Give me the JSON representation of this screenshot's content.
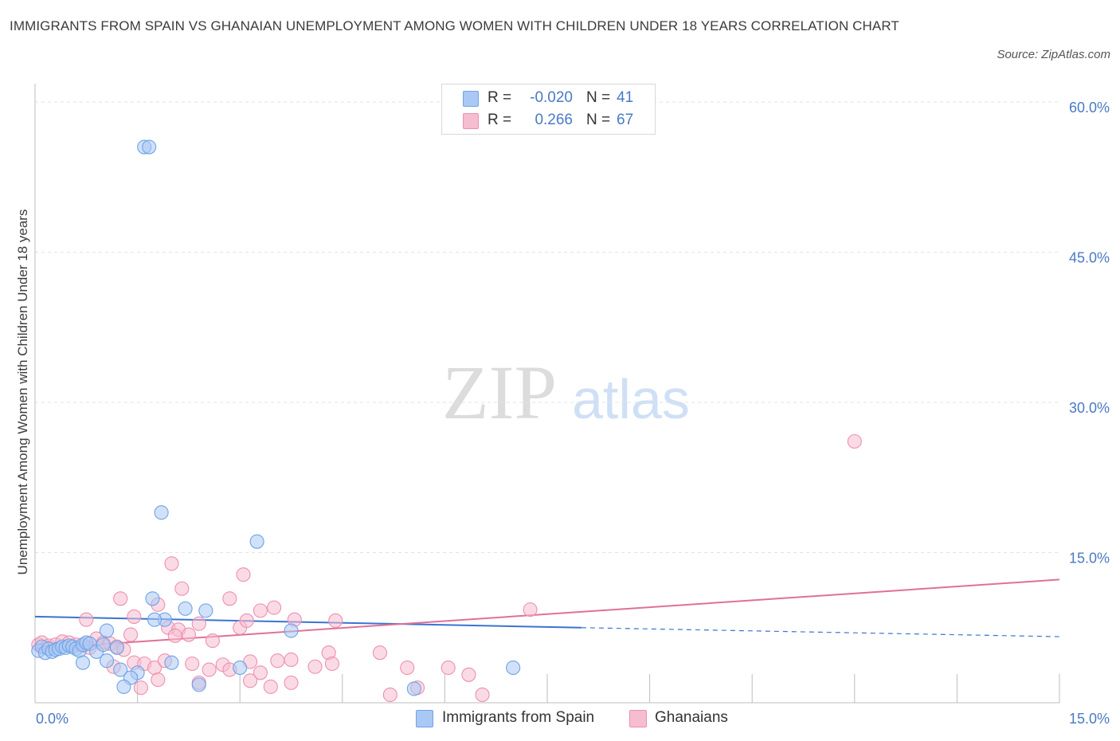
{
  "title": "IMMIGRANTS FROM SPAIN VS GHANAIAN UNEMPLOYMENT AMONG WOMEN WITH CHILDREN UNDER 18 YEARS CORRELATION CHART",
  "source": "Source: ZipAtlas.com",
  "watermark": {
    "zip": "ZIP",
    "atlas": "atlas"
  },
  "legend_top": {
    "rows": [
      {
        "r_label": "R =",
        "r_value": "-0.020",
        "n_label": "N =",
        "n_value": "41",
        "color": "#a9c8f4"
      },
      {
        "r_label": "R =",
        "r_value": "0.266",
        "n_label": "N =",
        "n_value": "67",
        "color": "#f6bdd0"
      }
    ]
  },
  "legend_bottom": [
    {
      "label": "Immigrants from Spain",
      "color": "#a9c8f4"
    },
    {
      "label": "Ghanaians",
      "color": "#f6bdd0"
    }
  ],
  "chart_data": {
    "type": "scatter",
    "title": "IMMIGRANTS FROM SPAIN VS GHANAIAN UNEMPLOYMENT AMONG WOMEN WITH CHILDREN UNDER 18 YEARS CORRELATION CHART",
    "xlabel": "",
    "ylabel": "Unemployment Among Women with Children Under 18 years",
    "xlim": [
      0,
      15
    ],
    "ylim": [
      0,
      60
    ],
    "x_tick_labels": [
      {
        "value": 0,
        "label": "0.0%"
      },
      {
        "value": 15,
        "label": "15.0%"
      }
    ],
    "y_tick_labels": [
      {
        "value": 60,
        "label": "60.0%"
      },
      {
        "value": 45,
        "label": "45.0%"
      },
      {
        "value": 30,
        "label": "30.0%"
      },
      {
        "value": 15,
        "label": "15.0%"
      }
    ],
    "series": [
      {
        "name": "Immigrants from Spain",
        "color": "#6fa3e8",
        "fill": "#a9c8f4",
        "trend": {
          "x0": 0,
          "y0": 8.6,
          "x1": 8.0,
          "y1": 7.5,
          "dashed_to_x": 15,
          "dashed_to_y": 6.6,
          "color": "#3a74d0"
        },
        "points": [
          [
            0.05,
            5.2
          ],
          [
            0.1,
            5.6
          ],
          [
            0.15,
            5.0
          ],
          [
            0.2,
            5.4
          ],
          [
            0.25,
            5.1
          ],
          [
            0.3,
            5.3
          ],
          [
            0.35,
            5.4
          ],
          [
            0.4,
            5.6
          ],
          [
            0.45,
            5.5
          ],
          [
            0.5,
            5.7
          ],
          [
            0.55,
            5.6
          ],
          [
            0.6,
            5.4
          ],
          [
            0.65,
            5.2
          ],
          [
            0.7,
            5.8
          ],
          [
            0.75,
            6.0
          ],
          [
            0.8,
            5.9
          ],
          [
            0.9,
            5.1
          ],
          [
            1.0,
            5.8
          ],
          [
            1.05,
            7.2
          ],
          [
            1.2,
            5.5
          ],
          [
            1.6,
            55.5
          ],
          [
            1.67,
            55.5
          ],
          [
            1.85,
            19.0
          ],
          [
            1.72,
            10.4
          ],
          [
            1.9,
            8.3
          ],
          [
            1.75,
            8.3
          ],
          [
            2.2,
            9.4
          ],
          [
            2.5,
            9.2
          ],
          [
            3.25,
            16.1
          ],
          [
            3.0,
            3.5
          ],
          [
            3.75,
            7.2
          ],
          [
            0.7,
            4.0
          ],
          [
            1.05,
            4.2
          ],
          [
            1.25,
            3.3
          ],
          [
            1.5,
            3.0
          ],
          [
            2.0,
            4.0
          ],
          [
            1.4,
            2.5
          ],
          [
            1.3,
            1.6
          ],
          [
            2.4,
            1.8
          ],
          [
            5.55,
            1.4
          ],
          [
            7.0,
            3.5
          ]
        ]
      },
      {
        "name": "Ghanaians",
        "color": "#ee8fb0",
        "fill": "#f6bdd0",
        "trend": {
          "x0": 0,
          "y0": 5.4,
          "x1": 15,
          "y1": 12.3,
          "color": "#e0709a"
        },
        "points": [
          [
            0.05,
            5.8
          ],
          [
            0.1,
            6.0
          ],
          [
            0.15,
            5.5
          ],
          [
            0.2,
            5.7
          ],
          [
            0.3,
            5.8
          ],
          [
            0.4,
            6.1
          ],
          [
            0.5,
            6.0
          ],
          [
            0.6,
            5.8
          ],
          [
            0.7,
            5.7
          ],
          [
            0.8,
            5.5
          ],
          [
            0.9,
            6.4
          ],
          [
            1.0,
            6.0
          ],
          [
            1.1,
            5.9
          ],
          [
            1.2,
            5.6
          ],
          [
            1.3,
            5.3
          ],
          [
            1.4,
            6.8
          ],
          [
            0.75,
            8.3
          ],
          [
            1.25,
            10.4
          ],
          [
            1.45,
            8.6
          ],
          [
            1.8,
            9.8
          ],
          [
            1.95,
            7.5
          ],
          [
            2.1,
            7.3
          ],
          [
            2.05,
            6.7
          ],
          [
            2.25,
            6.8
          ],
          [
            2.4,
            7.9
          ],
          [
            2.6,
            6.2
          ],
          [
            2.85,
            10.4
          ],
          [
            3.0,
            7.5
          ],
          [
            3.1,
            8.2
          ],
          [
            2.0,
            13.9
          ],
          [
            2.15,
            11.4
          ],
          [
            3.05,
            12.8
          ],
          [
            3.3,
            9.2
          ],
          [
            3.5,
            9.5
          ],
          [
            3.8,
            8.3
          ],
          [
            4.4,
            8.2
          ],
          [
            1.15,
            3.6
          ],
          [
            1.45,
            4.0
          ],
          [
            1.6,
            3.9
          ],
          [
            1.75,
            3.5
          ],
          [
            1.9,
            4.2
          ],
          [
            2.3,
            3.9
          ],
          [
            2.55,
            3.3
          ],
          [
            2.75,
            3.8
          ],
          [
            3.15,
            4.1
          ],
          [
            3.3,
            3.0
          ],
          [
            3.55,
            4.2
          ],
          [
            3.75,
            4.3
          ],
          [
            4.1,
            3.6
          ],
          [
            4.3,
            5.0
          ],
          [
            4.35,
            3.9
          ],
          [
            5.05,
            5.0
          ],
          [
            5.2,
            0.8
          ],
          [
            5.45,
            3.5
          ],
          [
            5.6,
            1.5
          ],
          [
            6.05,
            3.5
          ],
          [
            6.35,
            2.8
          ],
          [
            6.55,
            0.8
          ],
          [
            7.25,
            9.3
          ],
          [
            12.0,
            26.1
          ],
          [
            1.55,
            1.5
          ],
          [
            1.8,
            2.3
          ],
          [
            2.4,
            2.0
          ],
          [
            2.85,
            3.3
          ],
          [
            3.15,
            2.2
          ],
          [
            3.45,
            1.6
          ],
          [
            3.75,
            2.0
          ]
        ]
      }
    ]
  }
}
